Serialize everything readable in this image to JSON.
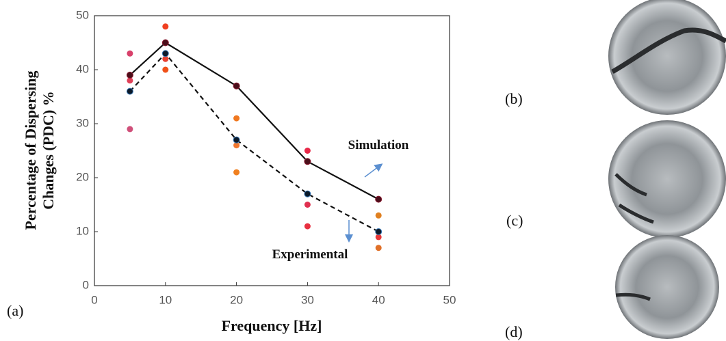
{
  "chart_data": {
    "type": "line",
    "x_label": "Frequency [Hz]",
    "y_label": [
      "Percentage of Dispersing",
      "Changes (PDC) %"
    ],
    "xlim": [
      0,
      50
    ],
    "xticks": [
      0,
      10,
      20,
      30,
      40,
      50
    ],
    "ylim": [
      0,
      50
    ],
    "yticks": [
      0,
      10,
      20,
      30,
      40,
      50
    ],
    "x": [
      5,
      10,
      20,
      30,
      40
    ],
    "series": [
      {
        "name": "Simulation",
        "color": "#111111",
        "dash": false,
        "values": [
          39,
          45,
          37,
          23,
          16
        ]
      },
      {
        "name": "Experimental",
        "color": "#111111",
        "dash": true,
        "values": [
          36,
          43,
          27,
          17,
          10
        ]
      }
    ],
    "measurements": {
      "x": [
        5,
        5,
        5,
        10,
        10,
        10,
        20,
        20,
        20,
        30,
        30,
        30,
        40,
        40,
        40
      ],
      "y": [
        43,
        38,
        29,
        48,
        42,
        40,
        31,
        26,
        21,
        25,
        15,
        11,
        13,
        9,
        7
      ],
      "colors": [
        "#d8406a",
        "#e04058",
        "#d0507a",
        "#f04020",
        "#e84030",
        "#f05018",
        "#f07820",
        "#f07830",
        "#f08020",
        "#e82848",
        "#e03050",
        "#e83040",
        "#e08020",
        "#e83838",
        "#e07028"
      ]
    }
  },
  "panels": [
    "(a)",
    "(b)",
    "(c)",
    "(d)"
  ]
}
